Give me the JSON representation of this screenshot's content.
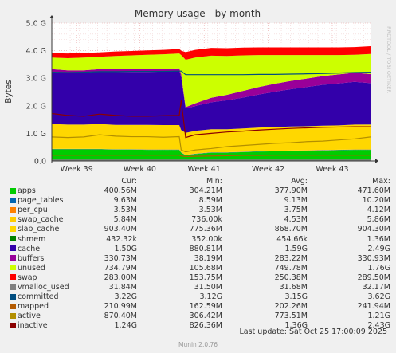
{
  "chart_data": {
    "type": "area",
    "title": "Memory usage - by month",
    "ylabel": "Bytes",
    "watermark": "RRDTOOL / TOBI OETIKER",
    "ylim": [
      0,
      5000000000
    ],
    "ytick_values": [
      0,
      1000000000,
      2000000000,
      3000000000,
      4000000000,
      5000000000
    ],
    "ytick_labels": [
      "0.0",
      "1.0 G",
      "2.0 G",
      "3.0 G",
      "4.0 G",
      "5.0 G"
    ],
    "x_domain": [
      0,
      100
    ],
    "x_ticks": [
      {
        "x": 7.8,
        "label": "Week 39"
      },
      {
        "x": 27.6,
        "label": "Week 40"
      },
      {
        "x": 47.8,
        "label": "Week 41"
      },
      {
        "x": 67.9,
        "label": "Week 42"
      },
      {
        "x": 88.0,
        "label": "Week 43"
      }
    ],
    "x": [
      0,
      5,
      10,
      15,
      20,
      25,
      30,
      35,
      40,
      40.6,
      42,
      45,
      50,
      55,
      60,
      65,
      70,
      75,
      80,
      85,
      90,
      95,
      100
    ],
    "stacked_series": [
      {
        "name": "apps",
        "color": "#00cc00",
        "values": [
          0.42,
          0.42,
          0.42,
          0.42,
          0.41,
          0.41,
          0.4,
          0.4,
          0.4,
          0.3,
          0.2,
          0.25,
          0.3,
          0.3,
          0.32,
          0.34,
          0.35,
          0.36,
          0.37,
          0.38,
          0.39,
          0.4,
          0.4
        ]
      },
      {
        "name": "page_tables",
        "color": "#0066b3",
        "values": [
          0.01,
          0.01,
          0.01,
          0.01,
          0.01,
          0.01,
          0.01,
          0.01,
          0.01,
          0.01,
          0.01,
          0.01,
          0.01,
          0.01,
          0.01,
          0.01,
          0.01,
          0.01,
          0.01,
          0.01,
          0.01,
          0.01,
          0.01
        ]
      },
      {
        "name": "per_cpu",
        "color": "#ff8000",
        "values": [
          0.004,
          0.004,
          0.004,
          0.004,
          0.004,
          0.004,
          0.004,
          0.004,
          0.004,
          0.004,
          0.004,
          0.004,
          0.004,
          0.004,
          0.004,
          0.004,
          0.004,
          0.004,
          0.004,
          0.004,
          0.004,
          0.004,
          0.004
        ]
      },
      {
        "name": "swap_cache",
        "color": "#ffcc00",
        "values": [
          0.005,
          0.005,
          0.005,
          0.005,
          0.005,
          0.005,
          0.005,
          0.005,
          0.005,
          0.005,
          0.005,
          0.005,
          0.005,
          0.005,
          0.005,
          0.005,
          0.005,
          0.005,
          0.005,
          0.005,
          0.005,
          0.005,
          0.006
        ]
      },
      {
        "name": "slab_cache",
        "color": "#ffd700",
        "values": [
          0.9,
          0.88,
          0.88,
          0.9,
          0.88,
          0.88,
          0.89,
          0.88,
          0.88,
          0.8,
          0.8,
          0.82,
          0.83,
          0.83,
          0.84,
          0.85,
          0.86,
          0.87,
          0.87,
          0.88,
          0.88,
          0.9,
          0.9
        ]
      },
      {
        "name": "shmem",
        "color": "#008000",
        "values": [
          0.0004,
          0.0004,
          0.0004,
          0.0004,
          0.0004,
          0.0004,
          0.0004,
          0.0004,
          0.0004,
          0.0004,
          0.0004,
          0.0004,
          0.0004,
          0.0004,
          0.0004,
          0.0004,
          0.0004,
          0.0004,
          0.0004,
          0.0004,
          0.0004,
          0.0004,
          0.0004
        ]
      },
      {
        "name": "cache",
        "color": "#3300aa",
        "values": [
          1.9,
          1.88,
          1.88,
          1.9,
          1.92,
          1.92,
          1.92,
          1.94,
          1.96,
          1.93,
          0.88,
          0.9,
          0.98,
          1.05,
          1.12,
          1.2,
          1.28,
          1.35,
          1.42,
          1.48,
          1.52,
          1.55,
          1.5
        ]
      },
      {
        "name": "buffers",
        "color": "#990099",
        "values": [
          0.09,
          0.09,
          0.09,
          0.09,
          0.1,
          0.1,
          0.1,
          0.1,
          0.1,
          0.1,
          0.05,
          0.1,
          0.16,
          0.2,
          0.24,
          0.27,
          0.29,
          0.3,
          0.31,
          0.32,
          0.33,
          0.33,
          0.33
        ]
      },
      {
        "name": "unused",
        "color": "#ccff00",
        "values": [
          0.42,
          0.44,
          0.46,
          0.45,
          0.48,
          0.5,
          0.52,
          0.53,
          0.54,
          0.69,
          1.72,
          1.66,
          1.53,
          1.41,
          1.29,
          1.16,
          1.04,
          0.94,
          0.85,
          0.76,
          0.7,
          0.65,
          0.73
        ]
      },
      {
        "name": "swap",
        "color": "#ff0000",
        "values": [
          0.16,
          0.17,
          0.17,
          0.16,
          0.16,
          0.16,
          0.16,
          0.16,
          0.16,
          0.16,
          0.28,
          0.28,
          0.28,
          0.28,
          0.28,
          0.28,
          0.28,
          0.28,
          0.28,
          0.28,
          0.28,
          0.28,
          0.28
        ]
      }
    ],
    "line_series": [
      {
        "name": "vmalloc_used",
        "color": "#808080",
        "values": [
          0.032,
          0.032,
          0.032,
          0.032,
          0.032,
          0.032,
          0.032,
          0.032,
          0.032,
          0.032,
          0.032,
          0.032,
          0.032,
          0.032,
          0.032,
          0.032,
          0.032,
          0.032,
          0.032,
          0.032,
          0.032,
          0.032,
          0.032
        ]
      },
      {
        "name": "committed",
        "color": "#004d80",
        "values": [
          3.22,
          3.21,
          3.22,
          3.24,
          3.24,
          3.25,
          3.25,
          3.25,
          3.26,
          3.26,
          3.13,
          3.13,
          3.13,
          3.13,
          3.13,
          3.14,
          3.14,
          3.15,
          3.16,
          3.17,
          3.19,
          3.21,
          3.22
        ]
      },
      {
        "name": "mapped",
        "color": "#b35a00",
        "values": [
          0.21,
          0.21,
          0.21,
          0.21,
          0.21,
          0.21,
          0.21,
          0.21,
          0.21,
          0.18,
          0.16,
          0.17,
          0.18,
          0.19,
          0.2,
          0.2,
          0.21,
          0.21,
          0.21,
          0.21,
          0.21,
          0.21,
          0.21
        ]
      },
      {
        "name": "active",
        "color": "#b38f00",
        "values": [
          0.87,
          0.85,
          0.87,
          0.95,
          0.9,
          0.88,
          0.88,
          0.86,
          0.88,
          0.4,
          0.33,
          0.4,
          0.45,
          0.52,
          0.56,
          0.6,
          0.64,
          0.66,
          0.7,
          0.72,
          0.76,
          0.8,
          0.87
        ]
      },
      {
        "name": "inactive",
        "color": "#8b0000",
        "values": [
          1.72,
          1.65,
          1.62,
          1.7,
          1.65,
          1.62,
          1.62,
          1.64,
          1.65,
          2.2,
          0.85,
          0.95,
          1.0,
          1.05,
          1.08,
          1.12,
          1.15,
          1.18,
          1.2,
          1.22,
          1.23,
          1.24,
          1.24
        ]
      }
    ]
  },
  "legend": {
    "headers": {
      "cur": "Cur:",
      "min": "Min:",
      "avg": "Avg:",
      "max": "Max:"
    },
    "rows": [
      {
        "name": "apps",
        "color": "#00cc00",
        "cur": "400.56M",
        "min": "304.21M",
        "avg": "377.90M",
        "max": "471.60M"
      },
      {
        "name": "page_tables",
        "color": "#0066b3",
        "cur": "9.63M",
        "min": "8.59M",
        "avg": "9.13M",
        "max": "10.20M"
      },
      {
        "name": "per_cpu",
        "color": "#ff8000",
        "cur": "3.53M",
        "min": "3.53M",
        "avg": "3.75M",
        "max": "4.12M"
      },
      {
        "name": "swap_cache",
        "color": "#ffcc00",
        "cur": "5.84M",
        "min": "736.00k",
        "avg": "4.53M",
        "max": "5.86M"
      },
      {
        "name": "slab_cache",
        "color": "#ffd700",
        "cur": "903.40M",
        "min": "775.36M",
        "avg": "868.70M",
        "max": "904.30M"
      },
      {
        "name": "shmem",
        "color": "#008000",
        "cur": "432.32k",
        "min": "352.00k",
        "avg": "454.66k",
        "max": "1.36M"
      },
      {
        "name": "cache",
        "color": "#3300aa",
        "cur": "1.50G",
        "min": "880.81M",
        "avg": "1.59G",
        "max": "2.49G"
      },
      {
        "name": "buffers",
        "color": "#990099",
        "cur": "330.73M",
        "min": "38.19M",
        "avg": "283.22M",
        "max": "330.93M"
      },
      {
        "name": "unused",
        "color": "#ccff00",
        "cur": "734.79M",
        "min": "105.68M",
        "avg": "749.78M",
        "max": "1.76G"
      },
      {
        "name": "swap",
        "color": "#ff0000",
        "cur": "283.00M",
        "min": "153.75M",
        "avg": "250.38M",
        "max": "289.50M"
      },
      {
        "name": "vmalloc_used",
        "color": "#808080",
        "cur": "31.84M",
        "min": "31.50M",
        "avg": "31.68M",
        "max": "32.17M"
      },
      {
        "name": "committed",
        "color": "#004d80",
        "cur": "3.22G",
        "min": "3.12G",
        "avg": "3.15G",
        "max": "3.62G"
      },
      {
        "name": "mapped",
        "color": "#b35a00",
        "cur": "210.99M",
        "min": "162.59M",
        "avg": "202.26M",
        "max": "241.94M"
      },
      {
        "name": "active",
        "color": "#b38f00",
        "cur": "870.40M",
        "min": "306.42M",
        "avg": "773.51M",
        "max": "1.21G"
      },
      {
        "name": "inactive",
        "color": "#8b0000",
        "cur": "1.24G",
        "min": "826.36M",
        "avg": "1.36G",
        "max": "2.43G"
      }
    ]
  },
  "footer": {
    "last_update": "Last update: Sat Oct 25 17:00:09 2025",
    "munin_version": "Munin 2.0.76"
  }
}
